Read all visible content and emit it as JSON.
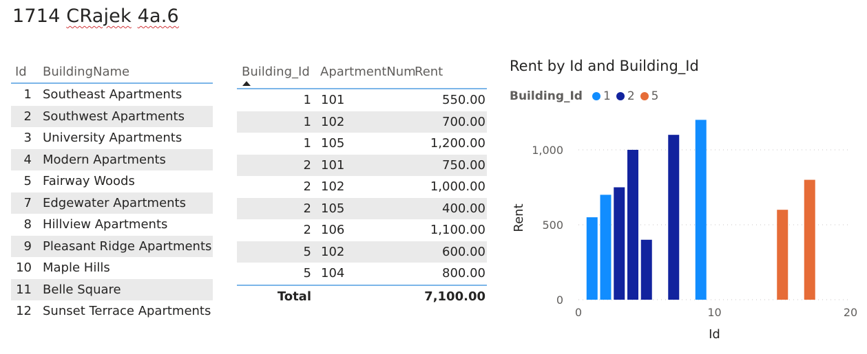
{
  "page": {
    "title_prefix": "1714 ",
    "title_word1": "CRajek",
    "title_space": " ",
    "title_word2": "4a.6"
  },
  "buildings_table": {
    "columns": [
      "Id",
      "BuildingName"
    ],
    "rows": [
      {
        "id": "1",
        "name": "Southeast Apartments"
      },
      {
        "id": "2",
        "name": "Southwest Apartments"
      },
      {
        "id": "3",
        "name": "University Apartments"
      },
      {
        "id": "4",
        "name": "Modern Apartments"
      },
      {
        "id": "5",
        "name": "Fairway Woods"
      },
      {
        "id": "7",
        "name": "Edgewater Apartments"
      },
      {
        "id": "8",
        "name": "Hillview Apartments"
      },
      {
        "id": "9",
        "name": "Pleasant Ridge Apartments"
      },
      {
        "id": "10",
        "name": "Maple Hills"
      },
      {
        "id": "11",
        "name": "Belle Square"
      },
      {
        "id": "12",
        "name": "Sunset Terrace Apartments"
      }
    ]
  },
  "apartments_table": {
    "columns": [
      "Building_Id",
      "ApartmentNum",
      "Rent"
    ],
    "sort_icon": "sort-ascending-icon",
    "rows": [
      {
        "building_id": "1",
        "apt": "101",
        "rent": "550.00"
      },
      {
        "building_id": "1",
        "apt": "102",
        "rent": "700.00"
      },
      {
        "building_id": "1",
        "apt": "105",
        "rent": "1,200.00"
      },
      {
        "building_id": "2",
        "apt": "101",
        "rent": "750.00"
      },
      {
        "building_id": "2",
        "apt": "102",
        "rent": "1,000.00"
      },
      {
        "building_id": "2",
        "apt": "105",
        "rent": "400.00"
      },
      {
        "building_id": "2",
        "apt": "106",
        "rent": "1,100.00"
      },
      {
        "building_id": "5",
        "apt": "102",
        "rent": "600.00"
      },
      {
        "building_id": "5",
        "apt": "104",
        "rent": "800.00"
      }
    ],
    "total_label": "Total",
    "total_value": "7,100.00"
  },
  "legend": {
    "title": "Building_Id",
    "items": [
      {
        "label": "1",
        "color": "#118dff"
      },
      {
        "label": "2",
        "color": "#12239e"
      },
      {
        "label": "5",
        "color": "#e66c37"
      }
    ]
  },
  "chart_data": {
    "type": "bar",
    "title": "Rent by Id and Building_Id",
    "xlabel": "Id",
    "ylabel": "Rent",
    "xlim": [
      0,
      20
    ],
    "ylim": [
      0,
      1200
    ],
    "xticks": [
      "0",
      "10",
      "20"
    ],
    "yticks": [
      "0",
      "500",
      "1,000"
    ],
    "grid": true,
    "legend_position": "top-left",
    "series": [
      {
        "name": "1",
        "color": "#118dff",
        "x": [
          1,
          2,
          9
        ],
        "values": [
          550,
          700,
          1200
        ]
      },
      {
        "name": "2",
        "color": "#12239e",
        "x": [
          3,
          4,
          5,
          7
        ],
        "values": [
          750,
          1000,
          400,
          1100
        ]
      },
      {
        "name": "5",
        "color": "#e66c37",
        "x": [
          15,
          17
        ],
        "values": [
          600,
          800
        ]
      }
    ]
  }
}
